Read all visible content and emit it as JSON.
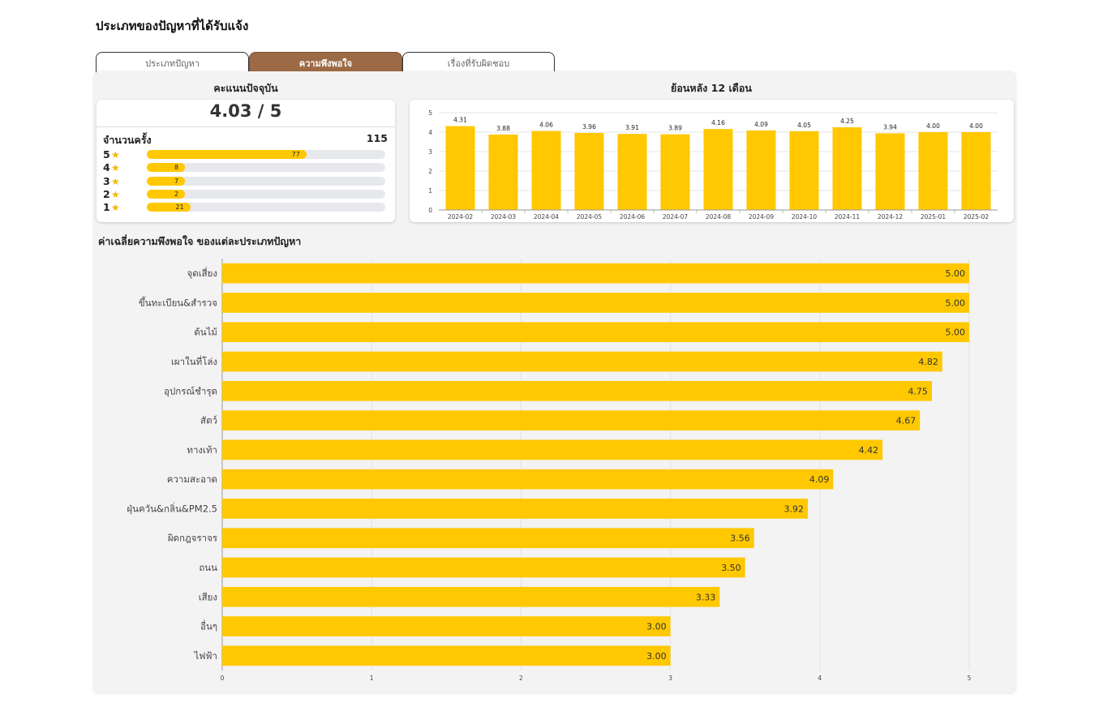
{
  "page_title": "ประเภทของปัญหาที่ได้รับแจ้ง",
  "tabs": [
    {
      "label": "ประเภทปัญหา",
      "active": false
    },
    {
      "label": "ความพึงพอใจ",
      "active": true
    },
    {
      "label": "เรื่องที่รับผิดชอบ",
      "active": false
    }
  ],
  "current_score": {
    "title": "คะแนนปัจจุบัน",
    "value": "4.03 / 5",
    "count_label": "จำนวนครั้ง",
    "count_value": "115",
    "ratings": [
      {
        "stars": "5",
        "count": 77
      },
      {
        "stars": "4",
        "count": 8
      },
      {
        "stars": "3",
        "count": 7
      },
      {
        "stars": "2",
        "count": 2
      },
      {
        "stars": "1",
        "count": 21
      }
    ]
  },
  "colors": {
    "accent_tab": "#9c6b45",
    "bar": "#ffc800",
    "panel_bg": "#f3f3f3",
    "track": "#e6e8ec",
    "star": "#f5b700"
  },
  "icons": {
    "rating_star": "star-icon"
  },
  "chart_data": [
    {
      "type": "bar",
      "title": "ย้อนหลัง 12 เดือน",
      "categories": [
        "2024-02",
        "2024-03",
        "2024-04",
        "2024-05",
        "2024-06",
        "2024-07",
        "2024-08",
        "2024-09",
        "2024-10",
        "2024-11",
        "2024-12",
        "2025-01",
        "2025-02"
      ],
      "values": [
        4.31,
        3.88,
        4.06,
        3.96,
        3.91,
        3.89,
        4.16,
        4.09,
        4.05,
        4.25,
        3.94,
        4.0,
        4.0
      ],
      "data_labels": [
        "4.31",
        "3.88",
        "4.06",
        "3.96",
        "3.91",
        "3.89",
        "4.16",
        "4.09",
        "4.05",
        "4.25",
        "3.94",
        "4.00",
        "4.00"
      ],
      "ylim": [
        0,
        5
      ],
      "yticks": [
        0,
        1,
        2,
        3,
        4,
        5
      ],
      "grid": true
    },
    {
      "type": "bar",
      "orientation": "horizontal",
      "title": "ค่าเฉลี่ยความพึงพอใจ ของแต่ละประเภทปัญหา",
      "categories": [
        "จุดเสี่ยง",
        "ขึ้นทะเบียน&สำรวจ",
        "ต้นไม้",
        "เผาในที่โล่ง",
        "อุปกรณ์ชำรุด",
        "สัตว์",
        "ทางเท้า",
        "ความสะอาด",
        "ฝุ่นควัน&กลิ่น&PM2.5",
        "ผิดกฎจราจร",
        "ถนน",
        "เสียง",
        "อื่นๆ",
        "ไฟฟ้า"
      ],
      "values": [
        5.0,
        5.0,
        5.0,
        4.82,
        4.75,
        4.67,
        4.42,
        4.09,
        3.92,
        3.56,
        3.5,
        3.33,
        3.0,
        3.0
      ],
      "data_labels": [
        "5.00",
        "5.00",
        "5.00",
        "4.82",
        "4.75",
        "4.67",
        "4.42",
        "4.09",
        "3.92",
        "3.56",
        "3.50",
        "3.33",
        "3.00",
        "3.00"
      ],
      "xlim": [
        0,
        5
      ],
      "xticks": [
        0,
        1,
        2,
        3,
        4,
        5
      ],
      "grid": true
    }
  ]
}
